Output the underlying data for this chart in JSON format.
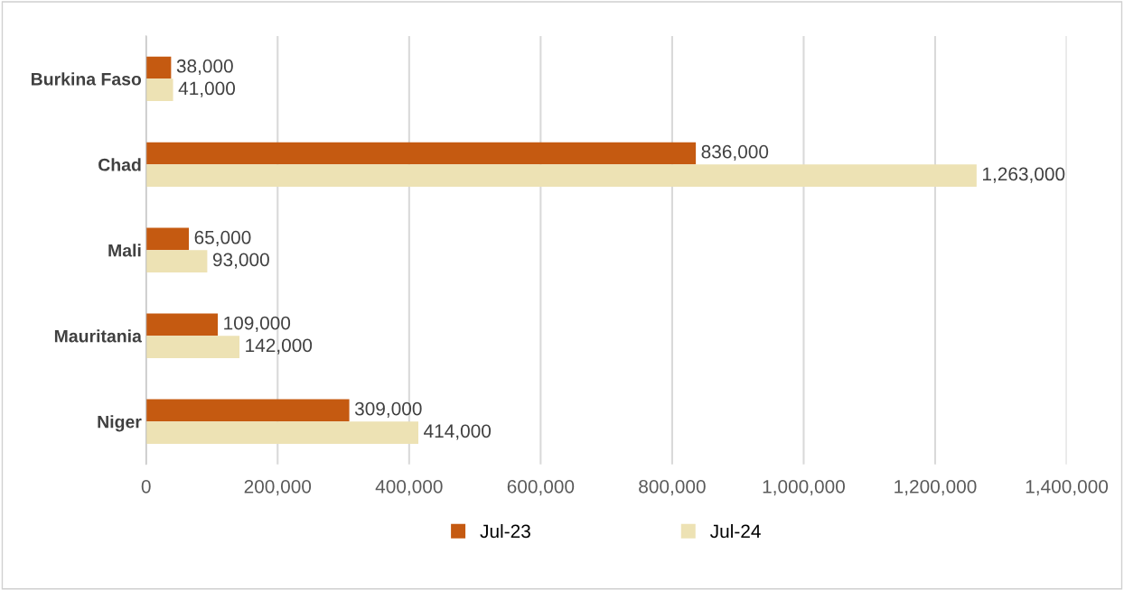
{
  "chart_data": {
    "type": "bar",
    "orientation": "horizontal",
    "categories": [
      "Burkina Faso",
      "Chad",
      "Mali",
      "Mauritania",
      "Niger"
    ],
    "series": [
      {
        "name": "Jul-23",
        "color": "#c55a11",
        "values": [
          38000,
          836000,
          65000,
          109000,
          309000
        ],
        "value_labels": [
          "38,000",
          "836,000",
          "65,000",
          "109,000",
          "309,000"
        ]
      },
      {
        "name": "Jul-24",
        "color": "#ede2b4",
        "values": [
          41000,
          1263000,
          93000,
          142000,
          414000
        ],
        "value_labels": [
          "41,000",
          "1,263,000",
          "93,000",
          "142,000",
          "414,000"
        ]
      }
    ],
    "xlim": [
      0,
      1400000
    ],
    "xticks": [
      0,
      {
        "value": 200000,
        "label": "200,000"
      },
      {
        "value": 400000,
        "label": "400,000"
      },
      {
        "value": 600000,
        "label": "600,000"
      },
      {
        "value": 800000,
        "label": "800,000"
      },
      {
        "value": 1000000,
        "label": "1,000,000"
      },
      {
        "value": 1200000,
        "label": "1,200,000"
      },
      {
        "value": 1400000,
        "label": "1,400,000"
      }
    ],
    "grid": "x",
    "legend": "bottom"
  }
}
